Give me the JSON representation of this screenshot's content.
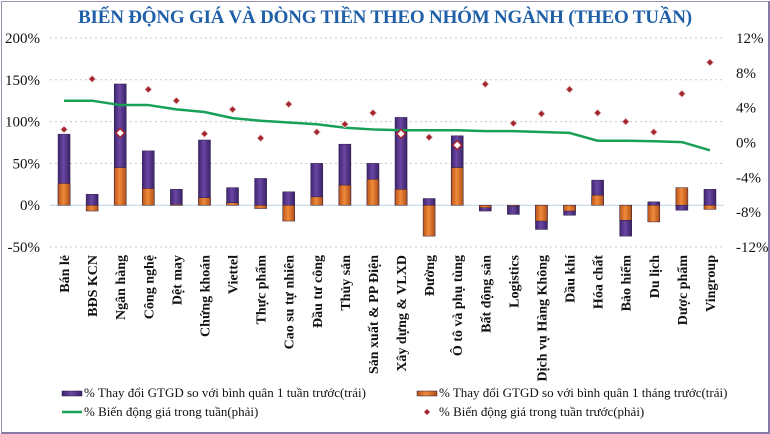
{
  "chart_data": {
    "type": "bar",
    "title": "BIẾN ĐỘNG GIÁ VÀ DÒNG TIỀN THEO NHÓM NGÀNH (THEO TUẦN)",
    "categories": [
      "Bán lẻ",
      "BĐS KCN",
      "Ngân hàng",
      "Công nghệ",
      "Dệt may",
      "Chứng khoán",
      "Viettel",
      "Thực phẩm",
      "Cao su tự nhiên",
      "Đầu tư công",
      "Thủy sản",
      "Sản xuất & PP Điện",
      "Xây dựng & VLXD",
      "Đường",
      "Ô tô và phụ tùng",
      "Bất động sản",
      "Logistics",
      "Dịch vụ Hàng Không",
      "Dầu khí",
      "Hóa chất",
      "Bảo hiểm",
      "Du lịch",
      "Dược phẩm",
      "Vingroup"
    ],
    "series": [
      {
        "name": "% Thay đổi GTGD so với bình quân 1 tuần trước(trái)",
        "type": "bar",
        "axis": "left",
        "color": "#5b3a8e",
        "values": [
          85,
          13,
          145,
          65,
          19,
          78,
          21,
          32,
          16,
          50,
          73,
          50,
          105,
          8,
          83,
          -7,
          -11,
          -29,
          -12,
          30,
          -37,
          4,
          -6,
          19
        ]
      },
      {
        "name": "% Thay đổi GTGD so với bình quân 1 tháng trước(trái)",
        "type": "bar",
        "axis": "left",
        "color": "#e8762c",
        "values": [
          26,
          -7,
          45,
          20,
          1,
          9,
          3,
          -4,
          -19,
          10,
          24,
          31,
          19,
          -37,
          45,
          -3,
          -1,
          -19,
          -7,
          12,
          -18,
          -20,
          21,
          -5
        ]
      },
      {
        "name": "% Biến động giá trong tuần(phải)",
        "type": "line",
        "axis": "right",
        "color": "#17a056",
        "values": [
          4.8,
          4.8,
          4.3,
          4.3,
          3.8,
          3.5,
          2.8,
          2.5,
          2.3,
          2.1,
          1.7,
          1.5,
          1.4,
          1.4,
          1.4,
          1.3,
          1.3,
          1.2,
          1.1,
          0.2,
          0.2,
          0.15,
          0.05,
          -0.9
        ]
      },
      {
        "name": "% Biến động giá trong tuần trước(phải)",
        "type": "scatter",
        "axis": "right",
        "color": "#a3242c",
        "values": [
          1.5,
          7.3,
          1.1,
          6.1,
          4.8,
          1.0,
          3.8,
          0.5,
          4.4,
          1.2,
          2.1,
          3.4,
          1.0,
          0.6,
          -0.3,
          6.7,
          2.2,
          3.3,
          6.1,
          3.4,
          2.4,
          1.2,
          5.6,
          9.2
        ]
      }
    ],
    "y_left": {
      "ticks": [
        "200%",
        "150%",
        "100%",
        "50%",
        "0%",
        "-50%"
      ],
      "tick_values": [
        200,
        150,
        100,
        50,
        0,
        -50
      ],
      "ylim": [
        -50,
        200
      ]
    },
    "y_right": {
      "ticks": [
        "12%",
        "8%",
        "4%",
        "0%",
        "-4%",
        "-8%",
        "-12%"
      ],
      "tick_values": [
        12,
        8,
        4,
        0,
        -4,
        -8,
        -12
      ],
      "ylim": [
        -12,
        12
      ]
    },
    "highlighted_points": [
      2,
      12,
      14
    ],
    "grid": true,
    "legend_position": "bottom",
    "xlabel": "",
    "ylabel": ""
  }
}
